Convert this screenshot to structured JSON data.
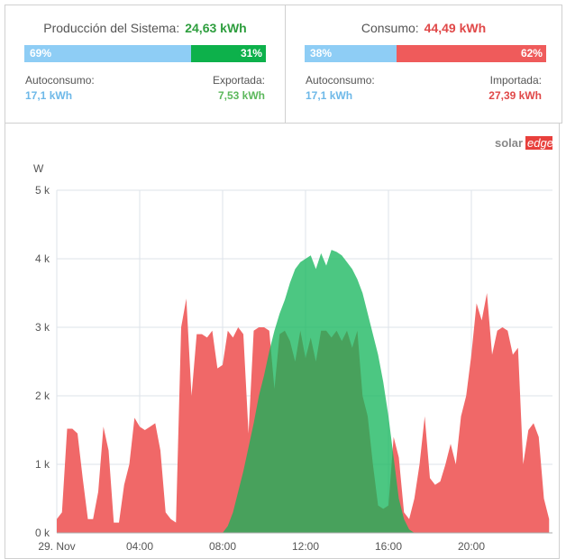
{
  "panels": [
    {
      "title": "Producción del Sistema:",
      "total": "24,63 kWh",
      "bar": [
        {
          "value": 69,
          "label": "69%",
          "color": "#8ecdf5"
        },
        {
          "value": 31,
          "label": "31%",
          "color": "#0db14b"
        }
      ],
      "left": {
        "label": "Autoconsumo:",
        "value": "17,1 kWh",
        "color": "#6db8e8"
      },
      "right": {
        "label": "Exportada:",
        "value": "7,53 kWh",
        "color": "#5cb85c"
      },
      "total_color": "#2e9e3e"
    },
    {
      "title": "Consumo:",
      "total": "44,49 kWh",
      "bar": [
        {
          "value": 38,
          "label": "38%",
          "color": "#8ecdf5"
        },
        {
          "value": 62,
          "label": "62%",
          "color": "#ef5b5b"
        }
      ],
      "left": {
        "label": "Autoconsumo:",
        "value": "17,1 kWh",
        "color": "#6db8e8"
      },
      "right": {
        "label": "Importada:",
        "value": "27,39 kWh",
        "color": "#e04848"
      },
      "total_color": "#e04848"
    }
  ],
  "logo": {
    "a": "solar",
    "b": "edge"
  },
  "chart_data": {
    "type": "area",
    "y_label": "W",
    "xlim": [
      0,
      24
    ],
    "ylim": [
      0,
      5000
    ],
    "xticks": [
      {
        "value": 0,
        "label": "29. Nov"
      },
      {
        "value": 4,
        "label": "04:00"
      },
      {
        "value": 8,
        "label": "08:00"
      },
      {
        "value": 12,
        "label": "12:00"
      },
      {
        "value": 16,
        "label": "16:00"
      },
      {
        "value": 20,
        "label": "20:00"
      }
    ],
    "yticks": [
      {
        "value": 0,
        "label": "0 k"
      },
      {
        "value": 1000,
        "label": "1 k"
      },
      {
        "value": 2000,
        "label": "2 k"
      },
      {
        "value": 3000,
        "label": "3 k"
      },
      {
        "value": 4000,
        "label": "4 k"
      },
      {
        "value": 5000,
        "label": "5 k"
      }
    ],
    "grid": true,
    "x": [
      0,
      0.25,
      0.5,
      0.75,
      1,
      1.25,
      1.5,
      1.75,
      2,
      2.25,
      2.5,
      2.75,
      3,
      3.25,
      3.5,
      3.75,
      4,
      4.25,
      4.5,
      4.75,
      5,
      5.25,
      5.5,
      5.75,
      6,
      6.25,
      6.5,
      6.75,
      7,
      7.25,
      7.5,
      7.75,
      8,
      8.25,
      8.5,
      8.75,
      9,
      9.25,
      9.5,
      9.75,
      10,
      10.25,
      10.5,
      10.75,
      11,
      11.25,
      11.5,
      11.75,
      12,
      12.25,
      12.5,
      12.75,
      13,
      13.25,
      13.5,
      13.75,
      14,
      14.25,
      14.5,
      14.75,
      15,
      15.25,
      15.5,
      15.75,
      16,
      16.25,
      16.5,
      16.75,
      17,
      17.25,
      17.5,
      17.75,
      18,
      18.25,
      18.5,
      18.75,
      19,
      19.25,
      19.5,
      19.75,
      20,
      20.25,
      20.5,
      20.75,
      21,
      21.25,
      21.5,
      21.75,
      22,
      22.25,
      22.5,
      22.75,
      23,
      23.25,
      23.5,
      23.75
    ],
    "series": [
      {
        "color": "#f06868",
        "opacity": 1,
        "values": [
          200,
          300,
          1520,
          1520,
          1450,
          800,
          200,
          200,
          600,
          1550,
          1200,
          150,
          150,
          700,
          1000,
          1680,
          1550,
          1500,
          1550,
          1600,
          1200,
          300,
          200,
          150,
          3000,
          3420,
          2000,
          2900,
          2900,
          2850,
          2950,
          2400,
          2450,
          2950,
          2850,
          3000,
          2900,
          1450,
          2950,
          3000,
          3000,
          2950,
          2100,
          2900,
          2950,
          2800,
          2500,
          2950,
          2550,
          2850,
          2500,
          2950,
          2950,
          2850,
          2950,
          2800,
          2950,
          2700,
          2950,
          2000,
          1700,
          1000,
          400,
          350,
          400,
          1400,
          1100,
          300,
          200,
          500,
          1000,
          1700,
          800,
          700,
          750,
          1000,
          1300,
          1000,
          1700,
          2000,
          2600,
          3350,
          3100,
          3500,
          2600,
          2950,
          3000,
          2950,
          2600,
          2700,
          1000,
          1500,
          1600,
          1400,
          500,
          200
        ]
      },
      {
        "color": "#10b458",
        "opacity": 0.75,
        "values": [
          0,
          0,
          0,
          0,
          0,
          0,
          0,
          0,
          0,
          0,
          0,
          0,
          0,
          0,
          0,
          0,
          0,
          0,
          0,
          0,
          0,
          0,
          0,
          0,
          0,
          0,
          0,
          0,
          0,
          0,
          0,
          0,
          0,
          100,
          300,
          600,
          900,
          1250,
          1600,
          2000,
          2300,
          2650,
          2950,
          3200,
          3400,
          3650,
          3850,
          3950,
          4000,
          4050,
          3850,
          4080,
          3900,
          4130,
          4100,
          4050,
          3950,
          3850,
          3700,
          3500,
          3200,
          2900,
          2600,
          2200,
          1700,
          1100,
          500,
          200,
          50,
          0,
          0,
          0,
          0,
          0,
          0,
          0,
          0,
          0,
          0,
          0,
          0,
          0,
          0,
          0,
          0,
          0,
          0,
          0,
          0,
          0,
          0,
          0,
          0,
          0,
          0,
          0
        ]
      }
    ]
  }
}
